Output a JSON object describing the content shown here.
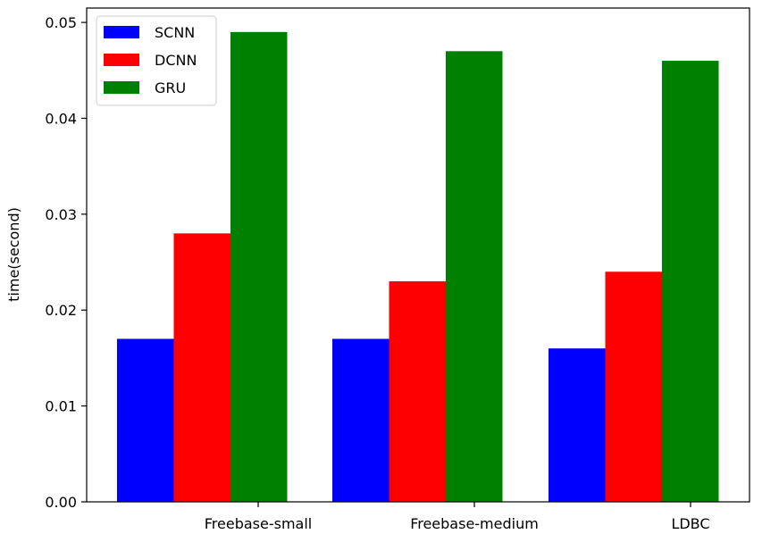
{
  "chart_data": {
    "type": "bar",
    "title": "",
    "xlabel": "",
    "ylabel": "time(second)",
    "categories": [
      "Freebase-small",
      "Freebase-medium",
      "LDBC"
    ],
    "series": [
      {
        "name": "SCNN",
        "color": "#0000ff",
        "values": [
          0.017,
          0.017,
          0.016
        ]
      },
      {
        "name": "DCNN",
        "color": "#ff0000",
        "values": [
          0.028,
          0.023,
          0.024
        ]
      },
      {
        "name": "GRU",
        "color": "#008000",
        "values": [
          0.049,
          0.047,
          0.046
        ]
      }
    ],
    "ylim": [
      0,
      0.0515
    ],
    "yticks": [
      0.0,
      0.01,
      0.02,
      0.03,
      0.04,
      0.05
    ],
    "ytick_labels": [
      "0.00",
      "0.01",
      "0.02",
      "0.03",
      "0.04",
      "0.05"
    ],
    "grid": false,
    "legend_position": "top-left"
  }
}
